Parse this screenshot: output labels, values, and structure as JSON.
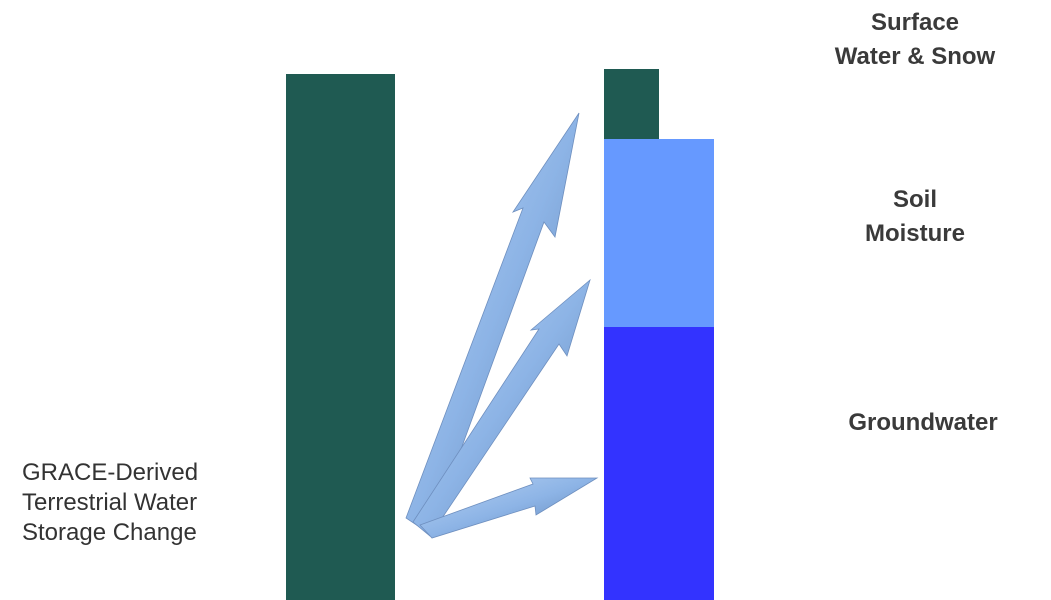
{
  "left_label": {
    "line1": "GRACE-Derived",
    "line2": "Terrestrial Water",
    "line3": "Storage Change"
  },
  "components": {
    "surface": {
      "line1": "Surface",
      "line2": "Water & Snow"
    },
    "soil": {
      "line1": "Soil",
      "line2": "Moisture"
    },
    "ground": {
      "line1": "Groundwater"
    }
  },
  "colors": {
    "total_bar": "#1f5a52",
    "surface_bar": "#1f5a52",
    "soil_bar": "#6699ff",
    "ground_bar": "#3333ff",
    "arrow": "#8db4e6"
  }
}
